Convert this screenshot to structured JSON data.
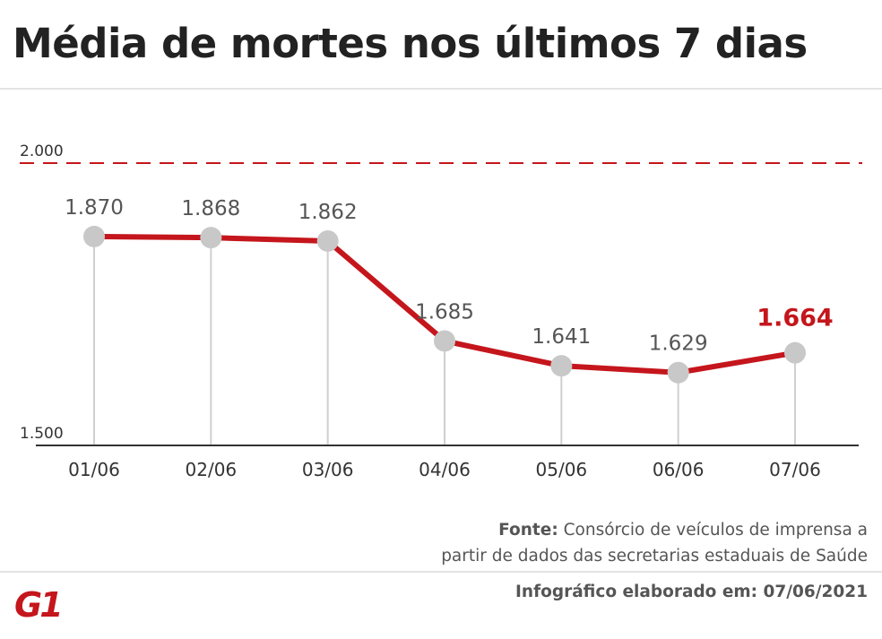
{
  "title": "Média de mortes nos últimos 7 dias",
  "source_label": "Fonte:",
  "source_line1": "Consórcio de veículos de imprensa a",
  "source_line2": "partir de dados das secretarias estaduais de Saúde",
  "credit": "Infográfico elaborado em: 07/06/2021",
  "logo_text": "G1",
  "colors": {
    "line": "#c4161c",
    "marker": "#c8c8c8",
    "reference": "#c4161c",
    "axis": "#333333"
  },
  "chart_data": {
    "type": "line",
    "title": "Média de mortes nos últimos 7 dias",
    "xlabel": "",
    "ylabel": "",
    "categories": [
      "01/06",
      "02/06",
      "03/06",
      "04/06",
      "05/06",
      "06/06",
      "07/06"
    ],
    "values": [
      1870,
      1868,
      1862,
      1685,
      1641,
      1629,
      1664
    ],
    "value_labels": [
      "1.870",
      "1.868",
      "1.862",
      "1.685",
      "1.641",
      "1.629",
      "1.664"
    ],
    "highlight_index": 6,
    "ylim": [
      1500,
      2000
    ],
    "yticks": [
      1500,
      2000
    ],
    "ytick_labels": [
      "1.500",
      "2.000"
    ],
    "reference_line": 2000,
    "grid": false
  }
}
